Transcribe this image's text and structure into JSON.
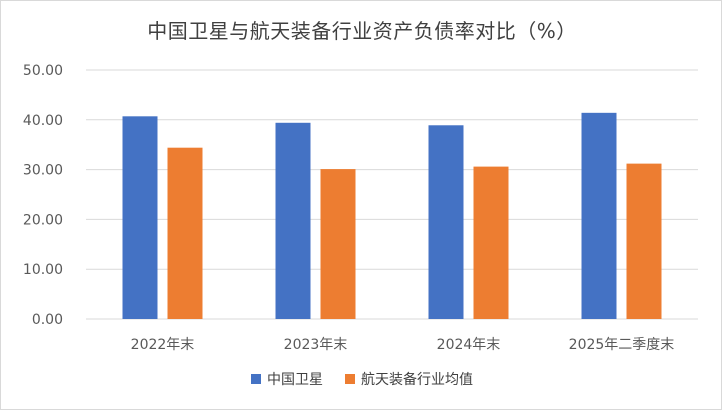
{
  "chart_data": {
    "type": "bar",
    "title": "中国卫星与航天装备行业资产负债率对比（%）",
    "categories": [
      "2022年末",
      "2023年末",
      "2024年末",
      "2025年二季度末"
    ],
    "series": [
      {
        "name": "中国卫星",
        "values": [
          40.7,
          39.4,
          38.9,
          41.4
        ],
        "color": "#4472C4"
      },
      {
        "name": "航天装备行业均值",
        "values": [
          34.4,
          30.1,
          30.6,
          31.2
        ],
        "color": "#ED7D31"
      }
    ],
    "yticks": [
      "0.00",
      "10.00",
      "20.00",
      "30.00",
      "40.00",
      "50.00"
    ],
    "ylim": [
      0,
      50
    ],
    "grid": true,
    "legend": "bottom",
    "colors": {
      "grid": "#d9d9d9",
      "axis_text": "#595959"
    }
  }
}
